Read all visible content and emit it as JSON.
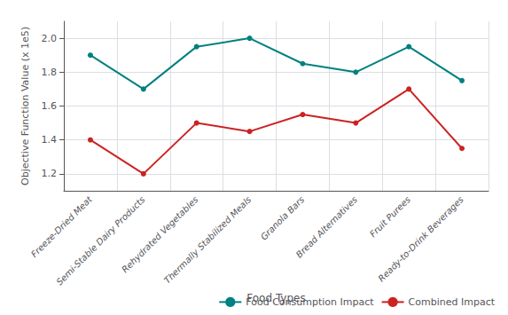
{
  "chart_data": {
    "type": "line",
    "xlabel": "Food Types",
    "ylabel": "Objective Function Value (x 1e5)",
    "categories": [
      "Freeze-Dried Meat",
      "Semi-Stable Dairy Products",
      "Rehydrated Vegetables",
      "Thermally Stabilized Meals",
      "Granola Bars",
      "Bread Alternatives",
      "Fruit Purees",
      "Ready-to-Drink Beverages"
    ],
    "series": [
      {
        "name": "Food Consumption Impact",
        "color": "#008080",
        "marker": "circle",
        "values": [
          1.9,
          1.7,
          1.95,
          2.0,
          1.85,
          1.8,
          1.95,
          1.75
        ]
      },
      {
        "name": "Combined Impact",
        "color": "#cc2222",
        "marker": "circle",
        "values": [
          1.4,
          1.2,
          1.5,
          1.45,
          1.55,
          1.5,
          1.7,
          1.35
        ]
      }
    ],
    "ylim": [
      1.1,
      2.1
    ],
    "yticks": [
      1.2,
      1.4,
      1.6,
      1.8,
      {
        "value": 2.0,
        "label": "2.0"
      }
    ],
    "grid": true,
    "legend": "lower right"
  }
}
